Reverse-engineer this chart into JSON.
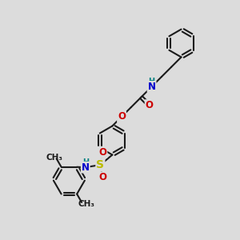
{
  "bg_color": "#dcdcdc",
  "bond_color": "#1a1a1a",
  "bond_width": 1.5,
  "atom_colors": {
    "N": "#0000cc",
    "O": "#cc0000",
    "S": "#bbbb00",
    "H": "#008080",
    "C": "#1a1a1a"
  },
  "font_size": 8.5,
  "xlim": [
    0,
    10
  ],
  "ylim": [
    0,
    10
  ]
}
